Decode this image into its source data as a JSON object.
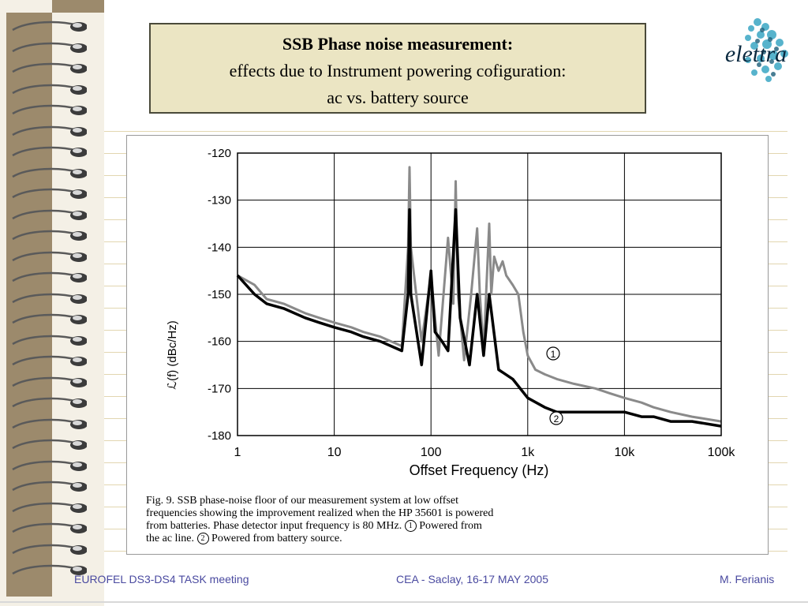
{
  "slide": {
    "title_line1": "SSB Phase noise measurement:",
    "title_line2": "effects due to Instrument powering cofiguration:",
    "title_line3": "ac vs. battery source",
    "logo_text": "elettra"
  },
  "figure": {
    "caption_l1": "Fig. 9.   SSB phase-noise floor of our measurement system at low offset",
    "caption_l2": "frequencies showing the improvement realized when the HP 35601 is powered",
    "caption_l3": "from batteries. Phase detector input frequency is 80 MHz.",
    "caption_l3b": "Powered from",
    "caption_l4": "the ac line.",
    "caption_l4b": "Powered from battery source.",
    "marker_1": "1",
    "marker_2": "2"
  },
  "chart_data": {
    "type": "line",
    "title": "",
    "xlabel": "Offset Frequency (Hz)",
    "ylabel": "ℒ(f) (dBc/Hz)",
    "x_scale": "log",
    "xlim": [
      1,
      100000
    ],
    "ylim": [
      -180,
      -120
    ],
    "x_ticks": [
      1,
      10,
      100,
      1000,
      10000,
      100000
    ],
    "x_tick_labels": [
      "1",
      "10",
      "100",
      "1k",
      "10k",
      "100k"
    ],
    "y_ticks": [
      -120,
      -130,
      -140,
      -150,
      -160,
      -170,
      -180
    ],
    "y_tick_labels": [
      "-120",
      "-130",
      "-140",
      "-150",
      "-160",
      "-170",
      "-180"
    ],
    "grid": true,
    "series": [
      {
        "name": "1",
        "color": "#8a8a8a",
        "x": [
          1,
          1.5,
          2,
          3,
          5,
          7,
          10,
          15,
          20,
          30,
          50,
          58,
          60,
          62,
          80,
          100,
          120,
          150,
          170,
          180,
          190,
          220,
          260,
          300,
          320,
          350,
          400,
          420,
          450,
          500,
          550,
          600,
          700,
          800,
          900,
          1000,
          1200,
          1500,
          2000,
          3000,
          5000,
          7000,
          10000,
          15000,
          20000,
          30000,
          50000,
          100000
        ],
        "y": [
          -146,
          -148,
          -151,
          -152,
          -154,
          -155,
          -156,
          -157,
          -158,
          -159,
          -161,
          -140,
          -123,
          -140,
          -160,
          -146,
          -163,
          -138,
          -152,
          -126,
          -150,
          -164,
          -150,
          -136,
          -150,
          -162,
          -135,
          -150,
          -142,
          -145,
          -143,
          -146,
          -148,
          -150,
          -158,
          -163,
          -166,
          -167,
          -168,
          -169,
          -170,
          -171,
          -172,
          -173,
          -174,
          -175,
          -176,
          -177
        ]
      },
      {
        "name": "2",
        "color": "#000000",
        "x": [
          1,
          1.5,
          2,
          3,
          5,
          7,
          10,
          15,
          20,
          30,
          50,
          58,
          60,
          62,
          80,
          100,
          110,
          130,
          150,
          180,
          200,
          250,
          300,
          350,
          400,
          500,
          700,
          1000,
          1500,
          2000,
          3000,
          5000,
          7000,
          10000,
          15000,
          20000,
          30000,
          50000,
          100000
        ],
        "y": [
          -146,
          -150,
          -152,
          -153,
          -155,
          -156,
          -157,
          -158,
          -159,
          -160,
          -162,
          -150,
          -132,
          -150,
          -165,
          -145,
          -158,
          -160,
          -162,
          -132,
          -155,
          -165,
          -150,
          -163,
          -150,
          -166,
          -168,
          -172,
          -174,
          -175,
          -175,
          -175,
          -175,
          -175,
          -176,
          -176,
          -177,
          -177,
          -178
        ]
      }
    ]
  },
  "footer": {
    "left": "EUROFEL DS3-DS4 TASK meeting",
    "center": "CEA - Saclay, 16-17 MAY 2005",
    "right": "M. Ferianis"
  },
  "colors": {
    "binder": "#9c8a6c",
    "title_bg": "#ebe5c3",
    "footer_text": "#4a4aa0",
    "rule_line": "#e2d6b0"
  }
}
